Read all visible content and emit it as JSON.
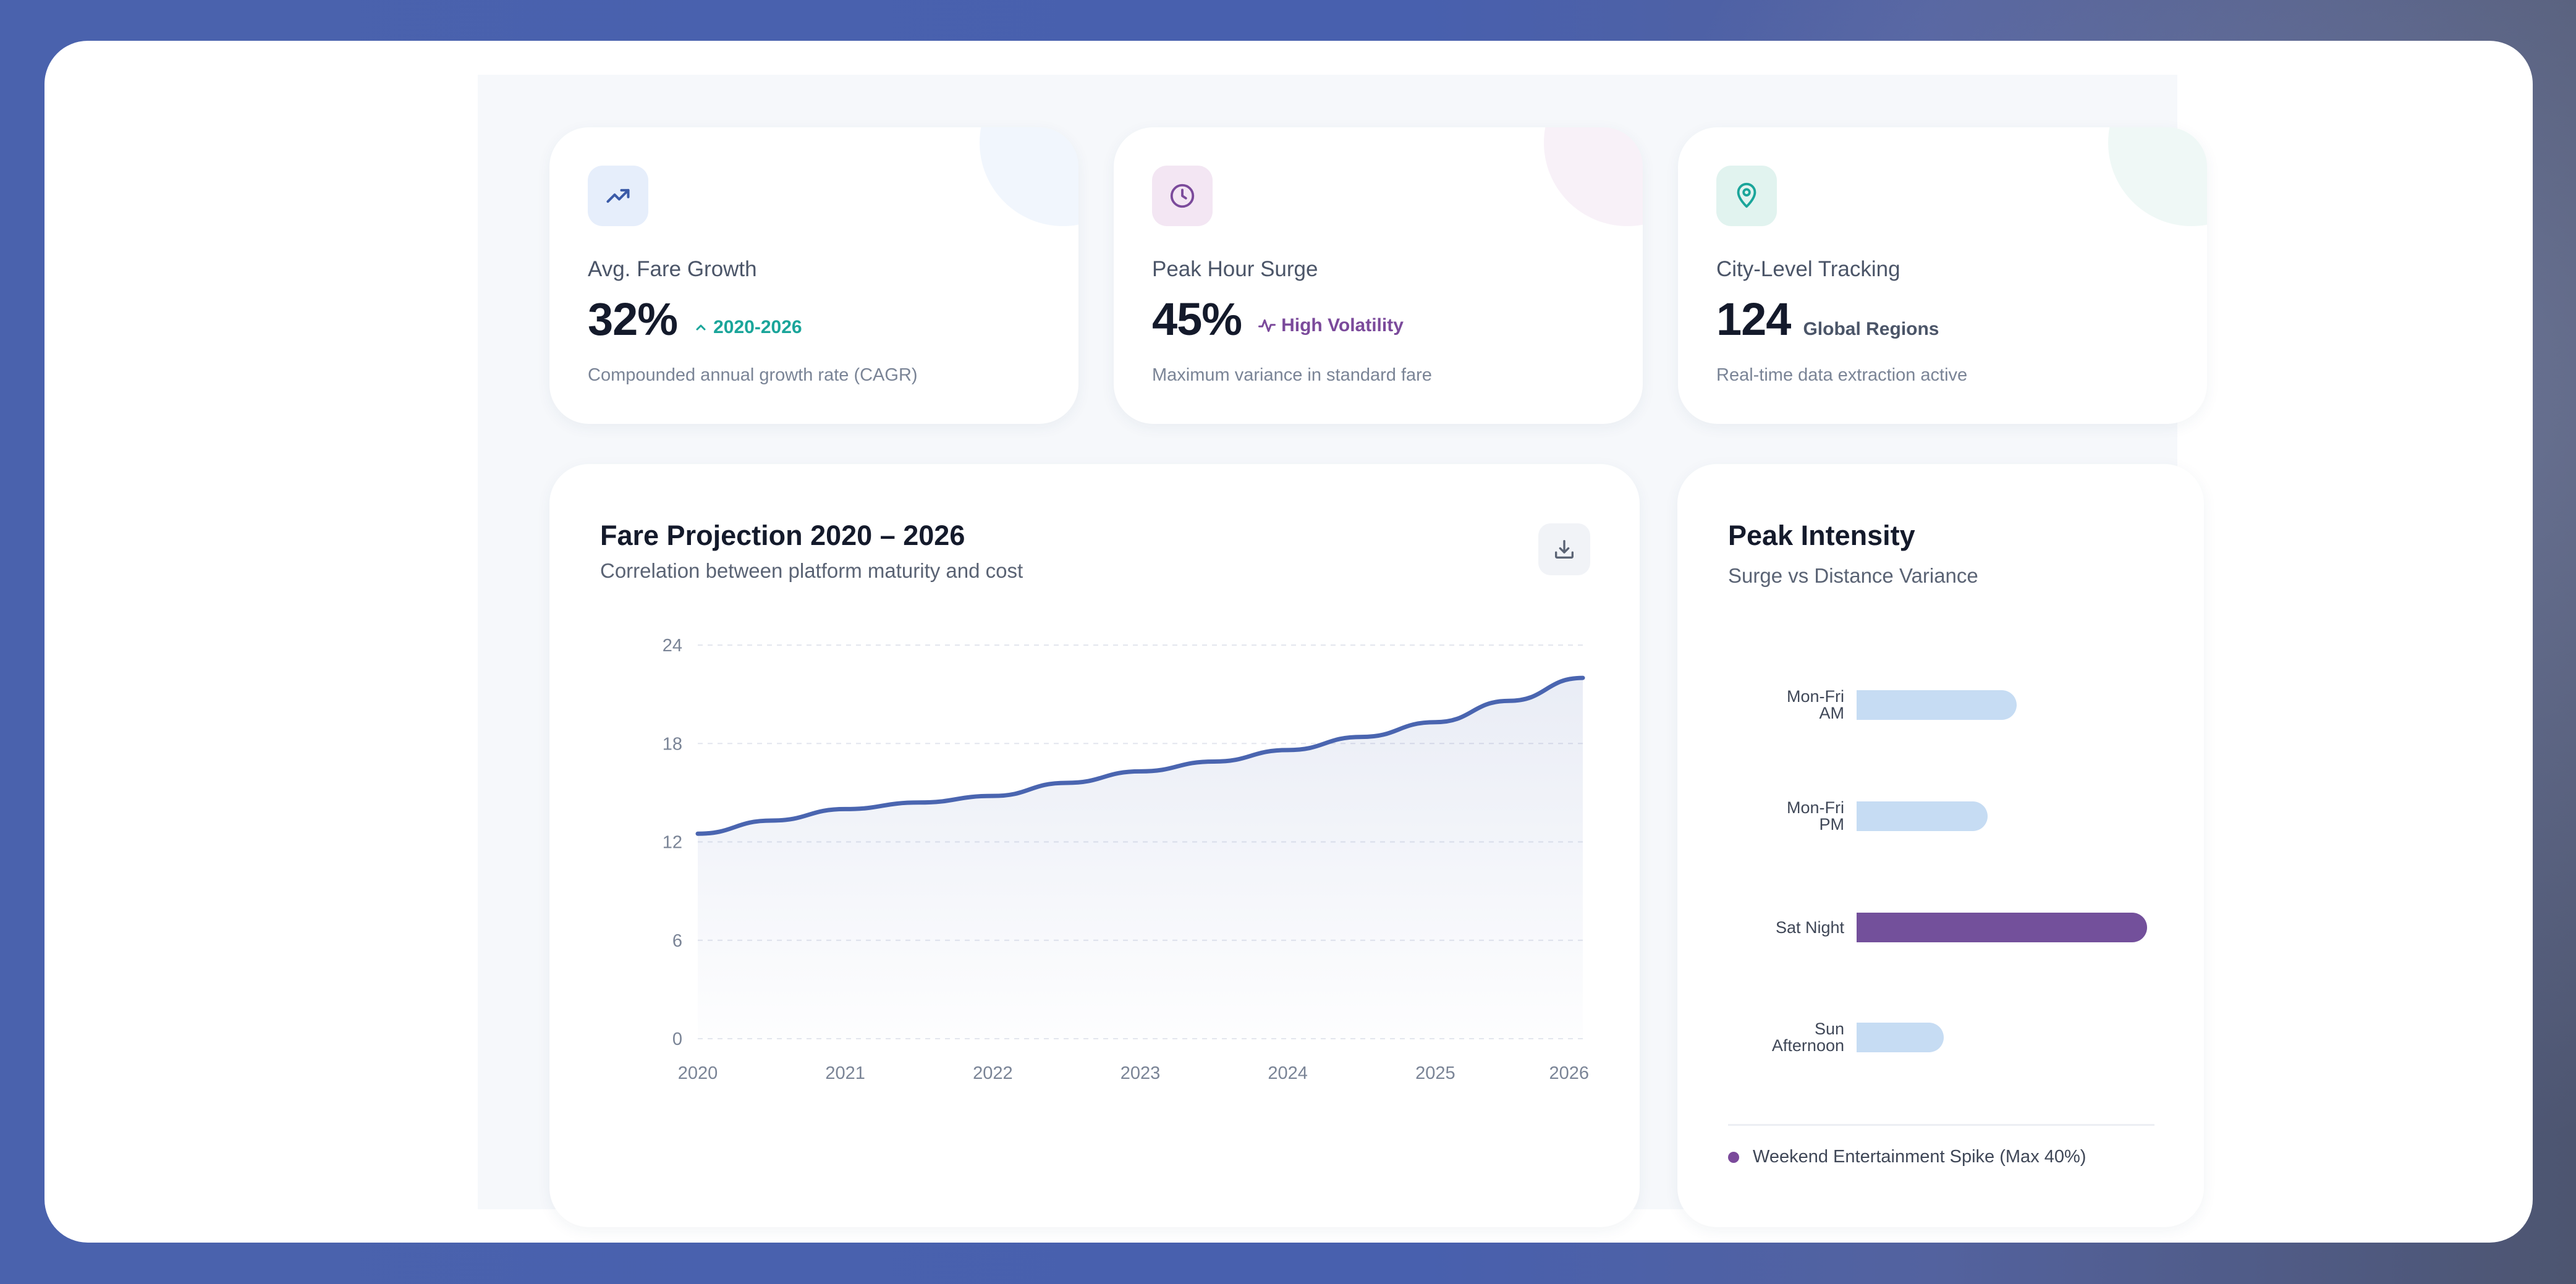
{
  "stats": [
    {
      "icon": "trending-up-icon",
      "label": "Avg. Fare Growth",
      "value": "32%",
      "badge": "2020-2026",
      "badge_color": "#1aa59a",
      "note": "Compounded annual growth rate (CAGR)",
      "accent": "#3b5ba8",
      "tint": "#e6eefb"
    },
    {
      "icon": "clock-icon",
      "label": "Peak Hour Surge",
      "value": "45%",
      "badge": "High Volatility",
      "badge_color": "#7b4a9b",
      "note": "Maximum variance in standard fare",
      "accent": "#7b4a9b",
      "tint": "#f3e6f3"
    },
    {
      "icon": "map-pin-icon",
      "label": "City-Level Tracking",
      "value": "124",
      "badge": "Global Regions",
      "badge_color": "#4b5568",
      "note": "Real-time data extraction active",
      "accent": "#1aa59a",
      "tint": "#e1f3ef"
    }
  ],
  "fare_chart": {
    "title": "Fare Projection 2020 – 2026",
    "subtitle": "Correlation between platform maturity and cost",
    "download_icon": "download-icon",
    "line_color": "#4a65b0"
  },
  "peak_chart": {
    "title": "Peak Intensity",
    "subtitle": "Surge vs Distance Variance",
    "legend": "Weekend Entertainment Spike (Max 40%)",
    "legend_color": "#7b4a9b"
  },
  "chart_data": [
    {
      "type": "area",
      "title": "Fare Projection 2020 – 2026",
      "x": [
        2020,
        2020.5,
        2021,
        2021.5,
        2022,
        2022.5,
        2023,
        2023.5,
        2024,
        2024.5,
        2025,
        2025.5,
        2026
      ],
      "x_ticks": [
        "2020",
        "2021",
        "2022",
        "2023",
        "2024",
        "2025",
        "2026"
      ],
      "values": [
        12.5,
        13.3,
        14.0,
        14.4,
        14.8,
        15.6,
        16.3,
        16.9,
        17.6,
        18.4,
        19.3,
        20.6,
        22.0
      ],
      "y_ticks": [
        "0",
        "6",
        "12",
        "18",
        "24"
      ],
      "ylim": [
        0,
        24
      ],
      "grid": true
    },
    {
      "type": "bar",
      "orientation": "horizontal",
      "title": "Peak Intensity",
      "categories": [
        [
          "Mon-Fri",
          "AM"
        ],
        [
          "Mon-Fri",
          "PM"
        ],
        [
          "Sat Night"
        ],
        [
          "Sun",
          "Afternoon"
        ]
      ],
      "values": [
        22,
        18,
        40,
        12
      ],
      "xlim": [
        0,
        40
      ],
      "colors": [
        "#c6dcf3",
        "#c6dcf3",
        "#73509b",
        "#c6dcf3"
      ]
    }
  ]
}
